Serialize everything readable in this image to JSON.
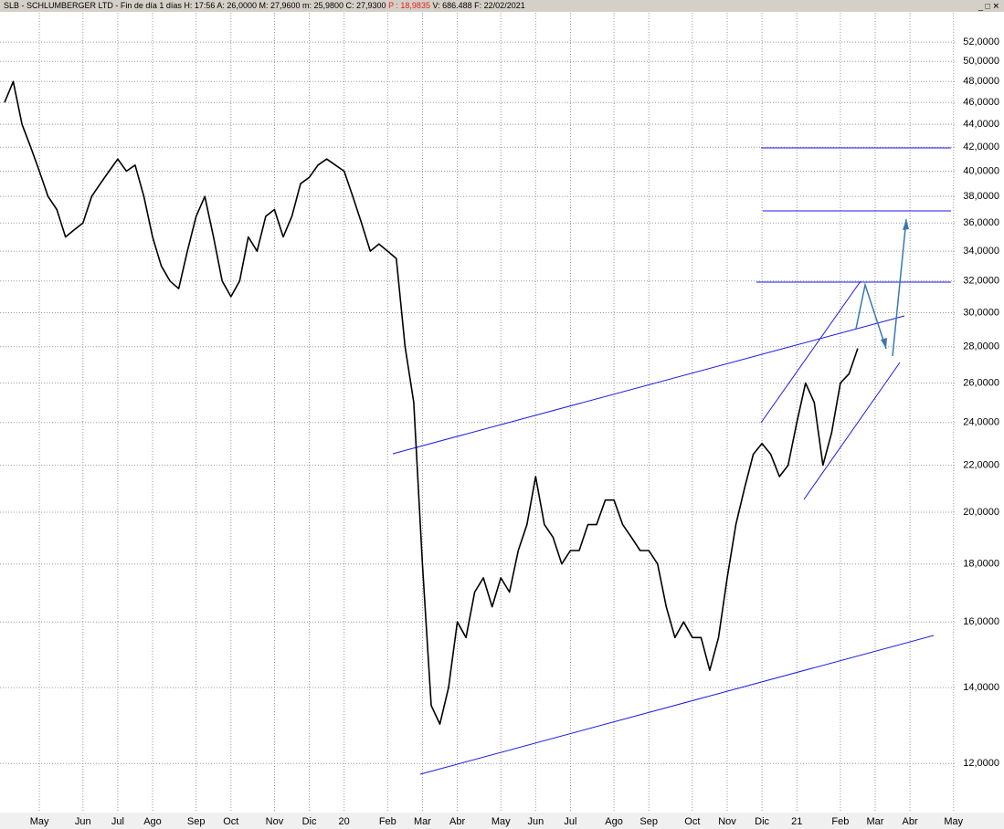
{
  "chart_data": {
    "type": "line",
    "title": "SLB - SCHLUMBERGER LTD - Fin de día 1 días  H: 17:56  A: 26,0000  M: 27,9600  m: 25,9800  C: 27,9300",
    "title_highlight": "P : 18,9835",
    "title_tail": "V: 686.488  F: 22/02/2021",
    "window_controls": "_ □ ✕",
    "log_scale": true,
    "grid": true,
    "color": "#000000",
    "highlight_color": "#e02020",
    "ylim": [
      10.9,
      55.2
    ],
    "yticks": [
      {
        "value": 12,
        "label": "12,0000"
      },
      {
        "value": 14,
        "label": "14,0000"
      },
      {
        "value": 16,
        "label": "16,0000"
      },
      {
        "value": 18,
        "label": "18,0000"
      },
      {
        "value": 20,
        "label": "20,0000"
      },
      {
        "value": 22,
        "label": "22,0000"
      },
      {
        "value": 24,
        "label": "24,0000"
      },
      {
        "value": 26,
        "label": "26,0000"
      },
      {
        "value": 28,
        "label": "28,0000"
      },
      {
        "value": 30,
        "label": "30,0000"
      },
      {
        "value": 32,
        "label": "32,0000"
      },
      {
        "value": 34,
        "label": "34,0000"
      },
      {
        "value": 36,
        "label": "36,0000"
      },
      {
        "value": 38,
        "label": "38,0000"
      },
      {
        "value": 40,
        "label": "40,0000"
      },
      {
        "value": 42,
        "label": "42,0000"
      },
      {
        "value": 44,
        "label": "44,0000"
      },
      {
        "value": 46,
        "label": "46,0000"
      },
      {
        "value": 48,
        "label": "48,0000"
      },
      {
        "value": 50,
        "label": "50,0000"
      },
      {
        "value": 52,
        "label": "52,0000"
      }
    ],
    "categories": [
      null,
      null,
      null,
      null,
      "May",
      null,
      null,
      null,
      null,
      "Jun",
      null,
      null,
      null,
      "Jul",
      null,
      null,
      null,
      "Ago",
      null,
      null,
      null,
      null,
      "Sep",
      null,
      null,
      null,
      "Oct",
      null,
      null,
      null,
      null,
      "Nov",
      null,
      null,
      null,
      "Dic",
      null,
      null,
      null,
      "20",
      null,
      null,
      null,
      null,
      "Feb",
      null,
      null,
      null,
      "Mar",
      null,
      null,
      null,
      "Abr",
      null,
      null,
      null,
      null,
      "May",
      null,
      null,
      null,
      "Jun",
      null,
      null,
      null,
      "Jul",
      null,
      null,
      null,
      null,
      "Ago",
      null,
      null,
      null,
      "Sep",
      null,
      null,
      null,
      null,
      "Oct",
      null,
      null,
      null,
      "Nov",
      null,
      null,
      null,
      "Dic",
      null,
      null,
      null,
      "21",
      null,
      null,
      null,
      null,
      "Feb",
      null,
      null,
      null,
      "Mar",
      null,
      null,
      null,
      "Abr",
      null,
      null,
      null,
      null,
      "May"
    ],
    "values": [
      46,
      48,
      44,
      42,
      40,
      38,
      37,
      35,
      35.5,
      36,
      38,
      39,
      40,
      41,
      40,
      40.5,
      38,
      35,
      33,
      32,
      31.5,
      34,
      36.5,
      38,
      35,
      32,
      31,
      32,
      35,
      34,
      36.5,
      37,
      35,
      36.5,
      39,
      39.5,
      40.5,
      41,
      40.5,
      40,
      38,
      36,
      34,
      34.5,
      34,
      33.5,
      28,
      25,
      18,
      13.5,
      13,
      14,
      16,
      15.5,
      17,
      17.5,
      16.5,
      17.5,
      17,
      18.5,
      19.5,
      21.5,
      19.5,
      19,
      18,
      18.5,
      18.5,
      19.5,
      19.5,
      20.5,
      20.5,
      19.5,
      19,
      18.5,
      18.5,
      18,
      16.5,
      15.5,
      16,
      15.5,
      15.5,
      14.5,
      15.5,
      17.5,
      19.5,
      21,
      22.5,
      23,
      22.5,
      21.5,
      22,
      24,
      26,
      25,
      22,
      23.5,
      26,
      26.5,
      27.9,
      null,
      null,
      null,
      null,
      null,
      null,
      null,
      null,
      null,
      null,
      null
    ]
  }
}
